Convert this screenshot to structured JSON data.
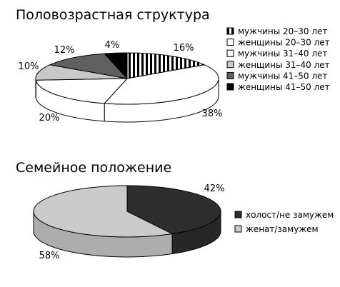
{
  "chart_data": [
    {
      "type": "pie",
      "title": "Половозрастная структура",
      "legend_position": "right",
      "series": [
        {
          "name": "мужчины  20–30 лет",
          "value": 16,
          "label": "16%",
          "pattern": "stripes"
        },
        {
          "name": "женщины  20–30 лет",
          "value": 38,
          "label": "38%",
          "color": "#ffffff"
        },
        {
          "name": "мужчины  31–40 лет",
          "value": 20,
          "label": "20%",
          "color": "#ffffff"
        },
        {
          "name": "женщины  31–40 лет",
          "value": 10,
          "label": "10%",
          "color": "#c8c8c8"
        },
        {
          "name": "мужчины  41–50 лет",
          "value": 12,
          "label": "12%",
          "color": "#606060"
        },
        {
          "name": "женщины 41–50 лет",
          "value": 4,
          "label": "4%",
          "color": "#000000"
        }
      ]
    },
    {
      "type": "pie",
      "title": "Семейное положение",
      "legend_position": "right",
      "series": [
        {
          "name": "холост/не замужем",
          "value": 42,
          "label": "42%",
          "color": "#2e2e2e"
        },
        {
          "name": "женат/замужем",
          "value": 58,
          "label": "58%",
          "color": "#cbcbcb"
        }
      ]
    }
  ]
}
